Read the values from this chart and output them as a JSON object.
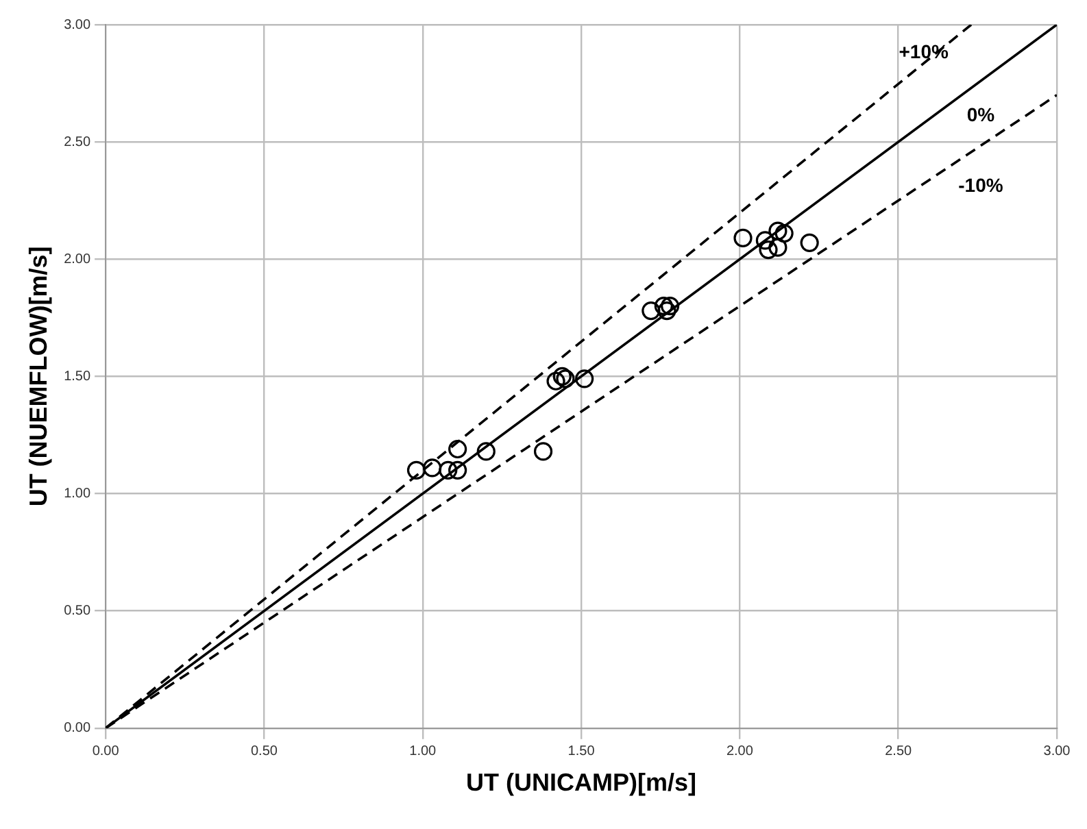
{
  "chart_data": {
    "type": "scatter",
    "xlabel": "UT (UNICAMP)[m/s]",
    "ylabel": "UT (NUEMFLOW)[m/s]",
    "xlim": [
      0,
      3
    ],
    "ylim": [
      0,
      3
    ],
    "xticks": [
      {
        "value": 0,
        "label": "0.00"
      },
      {
        "value": 0.5,
        "label": "0.50"
      },
      {
        "value": 1,
        "label": "1.00"
      },
      {
        "value": 1.5,
        "label": "1.50"
      },
      {
        "value": 2,
        "label": "2.00"
      },
      {
        "value": 2.5,
        "label": "2.50"
      },
      {
        "value": 3,
        "label": "3.00"
      }
    ],
    "yticks": [
      {
        "value": 0,
        "label": "0.00"
      },
      {
        "value": 0.5,
        "label": "0.50"
      },
      {
        "value": 1,
        "label": "1.00"
      },
      {
        "value": 1.5,
        "label": "1.50"
      },
      {
        "value": 2,
        "label": "2.00"
      },
      {
        "value": 2.5,
        "label": "2.50"
      },
      {
        "value": 3,
        "label": "3.00"
      }
    ],
    "grid": true,
    "legend": false,
    "series": [
      {
        "type": "scatter",
        "color": "#000000",
        "marker": "circle",
        "x": [
          0.98,
          1.03,
          1.08,
          1.11,
          1.11,
          1.2,
          1.38,
          1.42,
          1.44,
          1.45,
          1.51,
          1.72,
          1.76,
          1.78,
          1.77,
          2.01,
          2.08,
          2.09,
          2.12,
          2.12,
          2.14,
          2.22
        ],
        "values": [
          1.1,
          1.11,
          1.1,
          1.1,
          1.19,
          1.18,
          1.18,
          1.48,
          1.5,
          1.49,
          1.49,
          1.78,
          1.8,
          1.8,
          1.78,
          2.09,
          2.08,
          2.04,
          2.05,
          2.12,
          2.11,
          2.07
        ]
      },
      {
        "type": "line",
        "color": "#000000",
        "marker": "none",
        "line_style": "solid",
        "x": [
          0,
          3
        ],
        "values": [
          0,
          3
        ]
      },
      {
        "type": "line",
        "color": "#000000",
        "marker": "none",
        "line_style": "dashed",
        "x": [
          0,
          2.73
        ],
        "values": [
          0,
          3
        ]
      },
      {
        "type": "line",
        "color": "#000000",
        "marker": "none",
        "line_style": "dashed",
        "x": [
          0,
          3
        ],
        "values": [
          0,
          2.7
        ]
      }
    ],
    "annotations": [
      "+10%",
      "0%",
      "-10%"
    ]
  }
}
